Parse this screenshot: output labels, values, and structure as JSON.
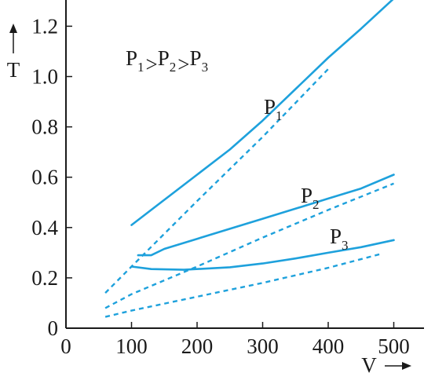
{
  "chart_data": {
    "type": "line",
    "xlim": [
      0,
      540
    ],
    "ylim": [
      0,
      1.3
    ],
    "x_ticks": [
      {
        "value": 0,
        "label": "0"
      },
      {
        "value": 100,
        "label": "100"
      },
      {
        "value": 200,
        "label": "200"
      },
      {
        "value": 300,
        "label": "300"
      },
      {
        "value": 400,
        "label": "400"
      },
      {
        "value": 500,
        "label": "500"
      }
    ],
    "y_ticks": [
      {
        "value": 0,
        "label": "0"
      },
      {
        "value": 0.2,
        "label": "0.2"
      },
      {
        "value": 0.4,
        "label": "0.4"
      },
      {
        "value": 0.6,
        "label": "0.6"
      },
      {
        "value": 0.8,
        "label": "0.8"
      },
      {
        "value": 1.0,
        "label": "1.0"
      },
      {
        "value": 1.2,
        "label": "1.2"
      }
    ],
    "xlabel": "V",
    "ylabel": "T",
    "annotation": {
      "text": "P₁ > P₂ > P₃",
      "main": [
        "P",
        "P",
        "P"
      ],
      "subs": [
        "1",
        "2",
        "3"
      ],
      "sep": " > "
    },
    "grid": false,
    "series": [
      {
        "name": "P1",
        "label_main": "P",
        "label_sub": "1",
        "color": "#1ea1dc",
        "solid": [
          [
            100,
            0.41
          ],
          [
            150,
            0.51
          ],
          [
            200,
            0.61
          ],
          [
            250,
            0.71
          ],
          [
            300,
            0.825
          ],
          [
            350,
            0.95
          ],
          [
            400,
            1.075
          ],
          [
            450,
            1.19
          ],
          [
            500,
            1.31
          ]
        ],
        "ideal_dotted": [
          [
            60,
            0.14
          ],
          [
            100,
            0.245
          ],
          [
            200,
            0.505
          ],
          [
            300,
            0.76
          ],
          [
            400,
            1.03
          ]
        ]
      },
      {
        "name": "P2",
        "label_main": "P",
        "label_sub": "2",
        "color": "#1ea1dc",
        "solid": [
          [
            110,
            0.29
          ],
          [
            130,
            0.29
          ],
          [
            150,
            0.315
          ],
          [
            200,
            0.355
          ],
          [
            250,
            0.395
          ],
          [
            300,
            0.435
          ],
          [
            350,
            0.475
          ],
          [
            400,
            0.515
          ],
          [
            450,
            0.555
          ],
          [
            500,
            0.61
          ]
        ],
        "ideal_dotted": [
          [
            60,
            0.08
          ],
          [
            100,
            0.135
          ],
          [
            200,
            0.245
          ],
          [
            300,
            0.36
          ],
          [
            400,
            0.47
          ],
          [
            500,
            0.575
          ]
        ]
      },
      {
        "name": "P3",
        "label_main": "P",
        "label_sub": "3",
        "color": "#1ea1dc",
        "solid": [
          [
            100,
            0.245
          ],
          [
            130,
            0.235
          ],
          [
            180,
            0.232
          ],
          [
            250,
            0.242
          ],
          [
            300,
            0.257
          ],
          [
            350,
            0.277
          ],
          [
            400,
            0.3
          ],
          [
            450,
            0.322
          ],
          [
            500,
            0.35
          ]
        ],
        "ideal_dotted": [
          [
            60,
            0.045
          ],
          [
            100,
            0.07
          ],
          [
            200,
            0.125
          ],
          [
            300,
            0.18
          ],
          [
            400,
            0.24
          ],
          [
            480,
            0.295
          ]
        ]
      }
    ]
  }
}
